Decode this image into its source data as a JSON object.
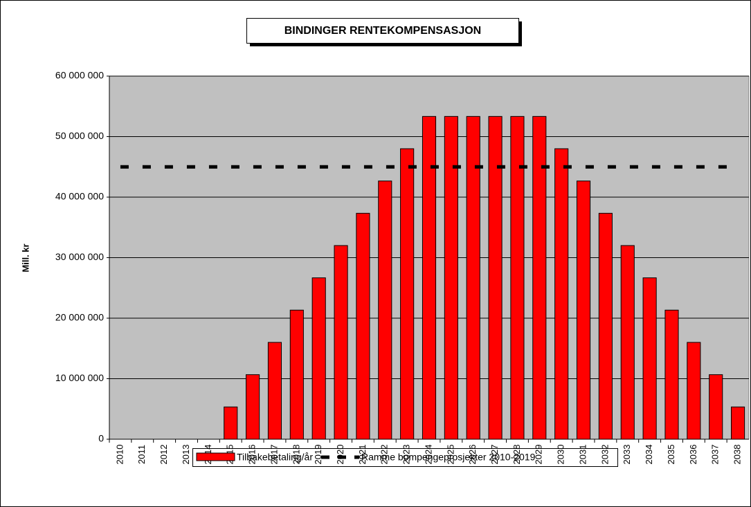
{
  "chart_data": {
    "type": "bar",
    "title": "BINDINGER RENTEKOMPENSASJON",
    "y_label": "Mill. kr",
    "categories": [
      "2010",
      "2011",
      "2012",
      "2013",
      "2014",
      "2015",
      "2016",
      "2017",
      "2018",
      "2019",
      "2020",
      "2021",
      "2022",
      "2023",
      "2024",
      "2025",
      "2026",
      "2027",
      "2028",
      "2029",
      "2030",
      "2031",
      "2032",
      "2033",
      "2034",
      "2035",
      "2036",
      "2037",
      "2038"
    ],
    "series": [
      {
        "name": "Tilbakebetaling/år",
        "color": "#ff0000",
        "values": [
          0,
          0,
          0,
          0,
          0,
          5333333,
          10666667,
          16000000,
          21333333,
          26666667,
          32000000,
          37333333,
          42666667,
          48000000,
          53333333,
          53333333,
          53333333,
          53333333,
          53333333,
          53333333,
          48000000,
          42666667,
          37333333,
          32000000,
          26666667,
          21333333,
          16000000,
          10666667,
          5333333
        ]
      },
      {
        "name": "Ramme bompengeprosjekter 2010-2019",
        "color": "#000000",
        "type": "line",
        "values": [
          45000000,
          45000000,
          45000000,
          45000000,
          45000000,
          45000000,
          45000000,
          45000000,
          45000000,
          45000000,
          45000000,
          45000000,
          45000000,
          45000000,
          45000000,
          45000000,
          45000000,
          45000000,
          45000000,
          45000000,
          45000000,
          45000000,
          45000000,
          45000000,
          45000000,
          45000000,
          45000000,
          45000000,
          45000000
        ]
      }
    ],
    "ylim": [
      0,
      60000000
    ],
    "yticks": [
      0,
      {
        "value": 10000000,
        "label": "10 000 000"
      },
      {
        "value": 20000000,
        "label": "20 000 000"
      },
      {
        "value": 30000000,
        "label": "30 000 000"
      },
      {
        "value": 40000000,
        "label": "40 000 000"
      },
      {
        "value": 50000000,
        "label": "50 000 000"
      },
      {
        "value": 60000000,
        "label": "60 000 000"
      }
    ],
    "grid": true,
    "background": "#c0c0c0",
    "legend": "bottom"
  }
}
